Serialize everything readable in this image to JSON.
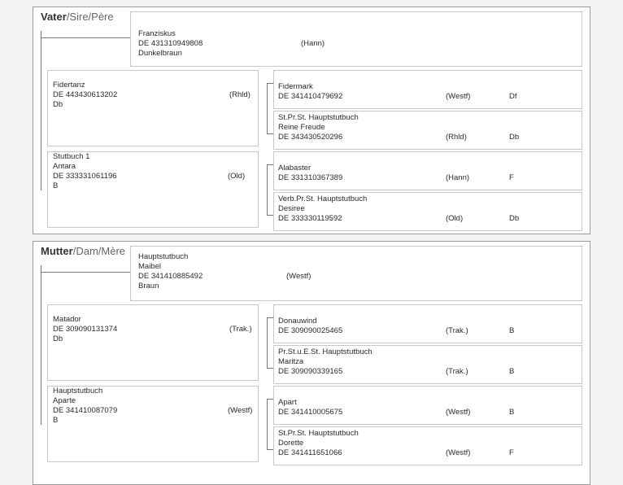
{
  "sections": [
    {
      "heading": {
        "bold": "Vater",
        "rest": "/Sire/Père"
      },
      "parent": {
        "lines": [
          "Franziskus",
          "DE 431310949808",
          "Dunkelbraun"
        ],
        "region": "(Hann)"
      },
      "grandparents": [
        {
          "lines": [
            "Fidertanz",
            "DE 443430613202",
            "Db"
          ],
          "region": "(Rhld)"
        },
        {
          "lines": [
            "Stutbuch 1",
            "Antara",
            "DE 333331061196",
            "B"
          ],
          "region": "(Old)"
        }
      ],
      "great_grandparents": [
        {
          "lines": [
            "Fidermark",
            "DE 341410479692"
          ],
          "region": "(Westf)",
          "color": "Df"
        },
        {
          "lines": [
            "St.Pr.St.  Hauptstutbuch",
            "Reine Freude",
            "DE 343430520296"
          ],
          "region": "(Rhld)",
          "color": "Db"
        },
        {
          "lines": [
            "Alabaster",
            "DE 331310367389"
          ],
          "region": "(Hann)",
          "color": "F"
        },
        {
          "lines": [
            "Verb.Pr.St.  Hauptstutbuch",
            "Desiree",
            "DE 333330119592"
          ],
          "region": "(Old)",
          "color": "Db"
        }
      ]
    },
    {
      "heading": {
        "bold": "Mutter",
        "rest": "/Dam/Mère"
      },
      "parent": {
        "lines": [
          "Hauptstutbuch",
          "Maibel",
          "DE 341410885492",
          "Braun"
        ],
        "region": "(Westf)"
      },
      "grandparents": [
        {
          "lines": [
            "Matador",
            "DE 309090131374",
            "Db"
          ],
          "region": "(Trak.)"
        },
        {
          "lines": [
            "Hauptstutbuch",
            "Aparte",
            "DE 341410087079",
            "B"
          ],
          "region": "(Westf)"
        }
      ],
      "great_grandparents": [
        {
          "lines": [
            "Donauwind",
            "DE 309090025465"
          ],
          "region": "(Trak.)",
          "color": "B"
        },
        {
          "lines": [
            "Pr.St.u.E.St.  Hauptstutbuch",
            "Maritza",
            "DE 309090339165"
          ],
          "region": "(Trak.)",
          "color": "B"
        },
        {
          "lines": [
            "Apart",
            "DE 341410005675"
          ],
          "region": "(Westf)",
          "color": "B"
        },
        {
          "lines": [
            "St.Pr.St.  Hauptstutbuch",
            "Dorette",
            "DE 341411651066"
          ],
          "region": "(Westf)",
          "color": "F"
        }
      ]
    }
  ]
}
